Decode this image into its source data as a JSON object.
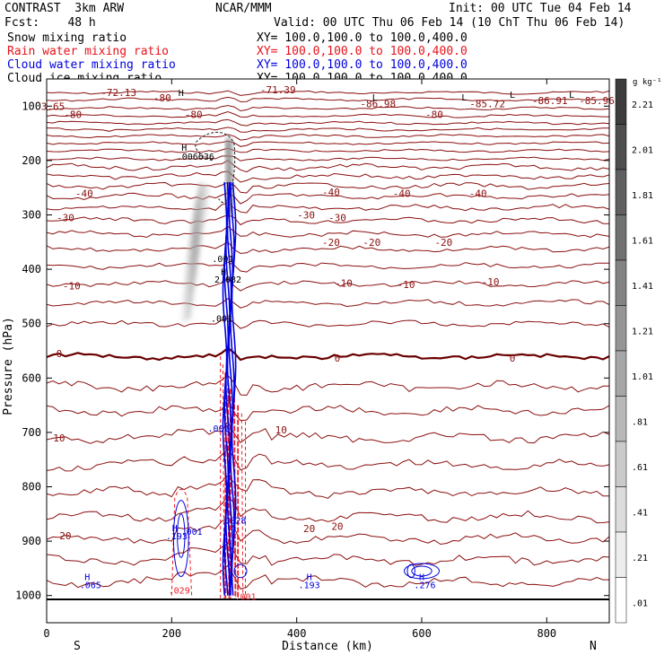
{
  "header": {
    "project": "CONTRAST",
    "model": "3km ARW",
    "center": "NCAR/MMM",
    "init": "Init: 00 UTC Tue 04 Feb 14",
    "fcst_label": "Fcst:",
    "fcst_value": "48 h",
    "valid": "Valid: 00 UTC Thu 06 Feb 14 (10 ChT Thu 06 Feb 14)"
  },
  "legend": [
    {
      "name": "Snow mixing ratio",
      "xy": "XY= 100.0,100.0 to 100.0,400.0",
      "color": "#000000"
    },
    {
      "name": "Rain water mixing ratio",
      "xy": "XY= 100.0,100.0 to 100.0,400.0",
      "color": "#e8121a"
    },
    {
      "name": "Cloud water mixing ratio",
      "xy": "XY= 100.0,100.0 to 100.0,400.0",
      "color": "#0000e0"
    },
    {
      "name": "Cloud ice mixing ratio",
      "xy": "XY= 100.0,100.0 to 100.0,400.0",
      "color": "#000000"
    }
  ],
  "chart_data": {
    "type": "contour",
    "xlabel": "Distance (km)",
    "ylabel": "Pressure (hPa)",
    "xlim": [
      0,
      900
    ],
    "ylim": [
      1050,
      50
    ],
    "x_ticks": [
      0,
      200,
      400,
      600,
      800
    ],
    "y_ticks": [
      100,
      200,
      300,
      400,
      500,
      600,
      700,
      800,
      900,
      1000
    ],
    "x_end_labels": {
      "left": "S",
      "right": "N"
    },
    "colorbar": {
      "units": "g kg⁻¹",
      "labels": [
        "2.21",
        "2.01",
        "1.81",
        "1.61",
        "1.41",
        "1.21",
        "1.01",
        ".81",
        ".61",
        ".41",
        ".21",
        ".01"
      ]
    },
    "temperature_labels": [
      {
        "text": "-72.13",
        "x": 115,
        "p": 75
      },
      {
        "text": "-80",
        "x": 185,
        "p": 85
      },
      {
        "text": "-71.39",
        "x": 370,
        "p": 70
      },
      {
        "text": "-86.98",
        "x": 530,
        "p": 95
      },
      {
        "text": "-85.72",
        "x": 705,
        "p": 95
      },
      {
        "text": "-86.91",
        "x": 805,
        "p": 90
      },
      {
        "text": "-85.96",
        "x": 880,
        "p": 90
      },
      {
        "text": "-80",
        "x": 42,
        "p": 115
      },
      {
        "text": "-80",
        "x": 235,
        "p": 115
      },
      {
        "text": "-80",
        "x": 620,
        "p": 115
      },
      {
        "text": "3.65",
        "x": 10,
        "p": 100
      },
      {
        "text": "-40",
        "x": 60,
        "p": 260
      },
      {
        "text": "-40",
        "x": 455,
        "p": 258
      },
      {
        "text": "-40",
        "x": 568,
        "p": 260
      },
      {
        "text": "-40",
        "x": 690,
        "p": 260
      },
      {
        "text": "-30",
        "x": 30,
        "p": 305
      },
      {
        "text": "-30",
        "x": 415,
        "p": 300
      },
      {
        "text": "-30",
        "x": 465,
        "p": 305
      },
      {
        "text": "-20",
        "x": 455,
        "p": 350
      },
      {
        "text": "-20",
        "x": 520,
        "p": 350
      },
      {
        "text": "-20",
        "x": 635,
        "p": 350
      },
      {
        "text": "-10",
        "x": 40,
        "p": 430
      },
      {
        "text": "-10",
        "x": 475,
        "p": 425
      },
      {
        "text": "-10",
        "x": 575,
        "p": 428
      },
      {
        "text": "-10",
        "x": 710,
        "p": 423
      },
      {
        "text": "0",
        "x": 20,
        "p": 555
      },
      {
        "text": "0",
        "x": 465,
        "p": 563
      },
      {
        "text": "0",
        "x": 745,
        "p": 563
      },
      {
        "text": "10",
        "x": 20,
        "p": 710
      },
      {
        "text": "10",
        "x": 375,
        "p": 695
      },
      {
        "text": "20",
        "x": 30,
        "p": 890
      },
      {
        "text": "20",
        "x": 420,
        "p": 877
      },
      {
        "text": "20",
        "x": 465,
        "p": 873
      }
    ],
    "extrema_labels": [
      {
        "text": "H",
        "x": 215,
        "p": 75
      },
      {
        "text": "L",
        "x": 525,
        "p": 83
      },
      {
        "text": "L",
        "x": 668,
        "p": 83
      },
      {
        "text": "L",
        "x": 745,
        "p": 78
      },
      {
        "text": "L",
        "x": 840,
        "p": 78
      },
      {
        "text": "H",
        "x": 220,
        "p": 175
      },
      {
        "text": ".006636",
        "x": 238,
        "p": 192
      },
      {
        "text": ".001",
        "x": 282,
        "p": 380
      },
      {
        "text": "H",
        "x": 283,
        "p": 404
      },
      {
        "text": "2.082",
        "x": 290,
        "p": 418
      },
      {
        "text": ".001",
        "x": 280,
        "p": 490
      }
    ],
    "cloud_labels": [
      {
        "text": "H",
        "x": 65,
        "p": 965
      },
      {
        "text": ".065",
        "x": 70,
        "p": 980
      },
      {
        "text": "H",
        "x": 205,
        "p": 875
      },
      {
        "text": ".193",
        "x": 208,
        "p": 890
      },
      {
        "text": ".001",
        "x": 232,
        "p": 882
      },
      {
        "text": ".001",
        "x": 275,
        "p": 692
      },
      {
        "text": "H",
        "x": 420,
        "p": 965
      },
      {
        "text": ".193",
        "x": 420,
        "p": 980
      },
      {
        "text": "H",
        "x": 600,
        "p": 965
      },
      {
        "text": ".276",
        "x": 605,
        "p": 980
      },
      {
        "text": ".028",
        "x": 302,
        "p": 861
      }
    ],
    "rain_labels": [
      {
        "text": "H",
        "x": 290,
        "p": 710
      },
      {
        "text": ".029",
        "x": 212,
        "p": 990
      },
      {
        "text": ".001",
        "x": 318,
        "p": 1001
      }
    ],
    "temperature_levels": [
      -80,
      -70,
      -60,
      -50,
      -40,
      -30,
      -20,
      -10,
      0,
      10,
      20
    ]
  }
}
